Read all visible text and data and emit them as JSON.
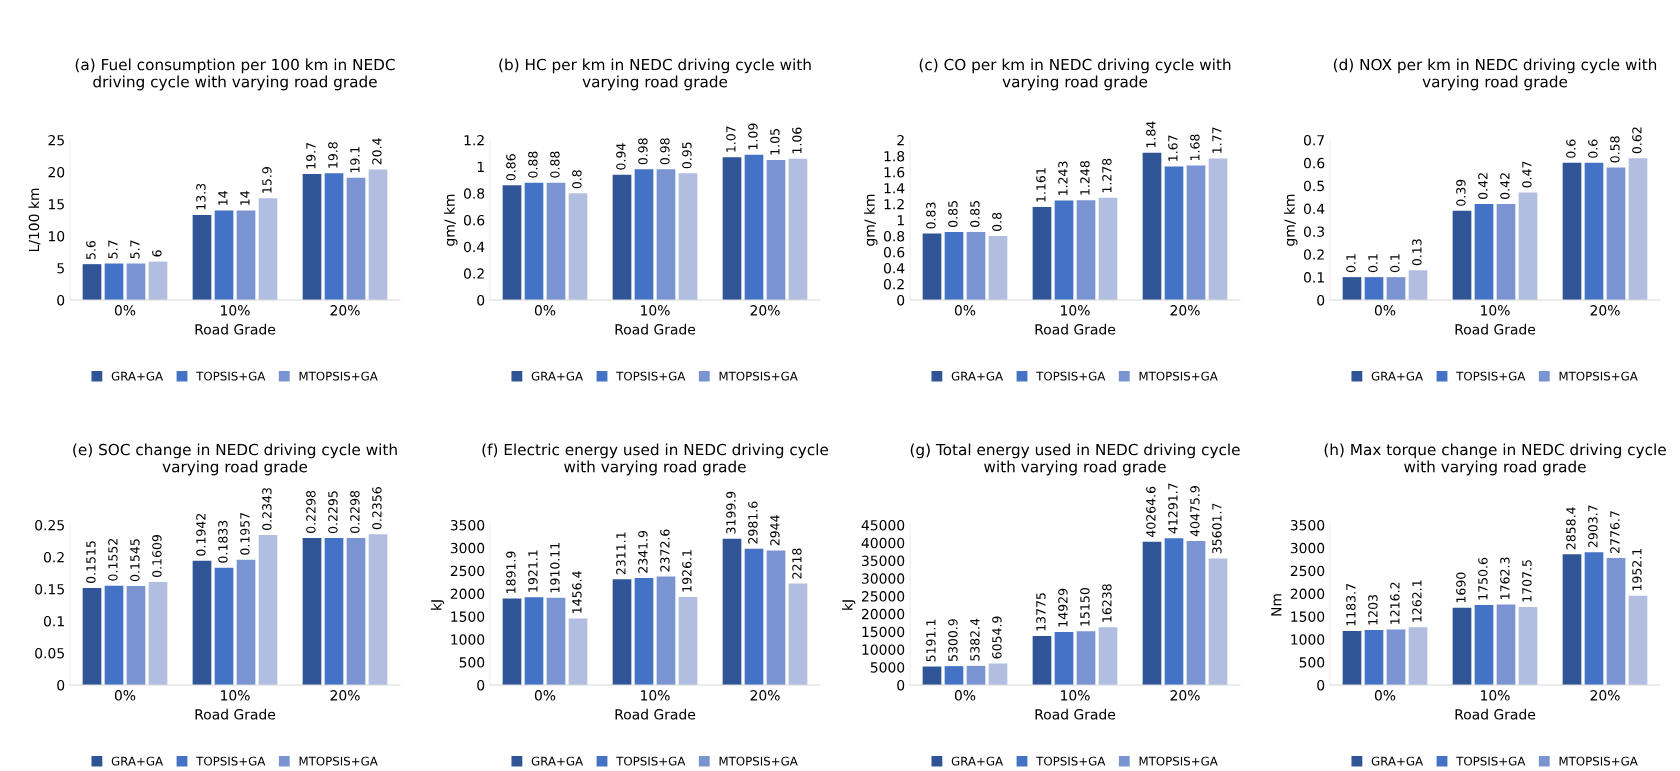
{
  "chart_data": [
    {
      "type": "bar",
      "title": "(a) Fuel consumption per 100 km in NEDC driving cycle with varying road grade",
      "xlabel": "Road Grade",
      "ylabel": "L/100 km",
      "categories": [
        "0%",
        "10%",
        "20%"
      ],
      "ylim": [
        0,
        25
      ],
      "yticks": [
        0,
        5,
        10,
        15,
        20,
        25
      ],
      "data_labels": true,
      "legend": "bottom",
      "grid": false,
      "series": [
        {
          "name": "GRA+GA",
          "color": "#2f5597",
          "values": [
            5.6,
            13.3,
            19.7
          ]
        },
        {
          "name": "TOPSIS+GA",
          "color": "#4472c4",
          "values": [
            5.7,
            14,
            19.8
          ]
        },
        {
          "name": "MTOPSIS+GA",
          "color": "#7a93d1",
          "values": [
            5.7,
            14,
            19.1
          ]
        },
        {
          "color": "#b1bee0",
          "values": [
            6,
            15.9,
            20.4
          ]
        }
      ]
    },
    {
      "type": "bar",
      "title": "(b) HC per km in NEDC driving cycle with varying road grade",
      "xlabel": "Road Grade",
      "ylabel": "gm/ km",
      "categories": [
        "0%",
        "10%",
        "20%"
      ],
      "ylim": [
        0,
        1.2
      ],
      "yticks": [
        0,
        0.2,
        0.4,
        0.6,
        0.8,
        1,
        1.2
      ],
      "data_labels": true,
      "legend": "bottom",
      "grid": false,
      "series": [
        {
          "name": "GRA+GA",
          "color": "#2f5597",
          "values": [
            0.86,
            0.94,
            1.07
          ]
        },
        {
          "name": "TOPSIS+GA",
          "color": "#4472c4",
          "values": [
            0.88,
            0.98,
            1.09
          ]
        },
        {
          "name": "MTOPSIS+GA",
          "color": "#7a93d1",
          "values": [
            0.88,
            0.98,
            1.05
          ]
        },
        {
          "color": "#b1bee0",
          "values": [
            0.8,
            0.95,
            1.06
          ]
        }
      ]
    },
    {
      "type": "bar",
      "title": "(c) CO per km in NEDC driving cycle with varying road grade",
      "xlabel": "Road Grade",
      "ylabel": "gm/ km",
      "categories": [
        "0%",
        "10%",
        "20%"
      ],
      "ylim": [
        0,
        2
      ],
      "yticks": [
        0,
        0.2,
        0.4,
        0.6,
        0.8,
        1,
        1.2,
        1.4,
        1.6,
        1.8,
        2
      ],
      "data_labels": true,
      "legend": "bottom",
      "grid": false,
      "series": [
        {
          "name": "GRA+GA",
          "color": "#2f5597",
          "values": [
            0.83,
            1.161,
            1.84
          ]
        },
        {
          "name": "TOPSIS+GA",
          "color": "#4472c4",
          "values": [
            0.85,
            1.243,
            1.67
          ]
        },
        {
          "name": "MTOPSIS+GA",
          "color": "#7a93d1",
          "values": [
            0.85,
            1.248,
            1.68
          ]
        },
        {
          "color": "#b1bee0",
          "values": [
            0.8,
            1.278,
            1.77
          ]
        }
      ]
    },
    {
      "type": "bar",
      "title": "(d) NOX per km in NEDC driving cycle with varying road grade",
      "xlabel": "Road Grade",
      "ylabel": "gm/ km",
      "categories": [
        "0%",
        "10%",
        "20%"
      ],
      "ylim": [
        0,
        0.7
      ],
      "yticks": [
        0,
        0.1,
        0.2,
        0.3,
        0.4,
        0.5,
        0.6,
        0.7
      ],
      "data_labels": true,
      "legend": "bottom",
      "grid": false,
      "series": [
        {
          "name": "GRA+GA",
          "color": "#2f5597",
          "values": [
            0.1,
            0.39,
            0.6
          ]
        },
        {
          "name": "TOPSIS+GA",
          "color": "#4472c4",
          "values": [
            0.1,
            0.42,
            0.6
          ]
        },
        {
          "name": "MTOPSIS+GA",
          "color": "#7a93d1",
          "values": [
            0.1,
            0.42,
            0.58
          ]
        },
        {
          "color": "#b1bee0",
          "values": [
            0.13,
            0.47,
            0.62
          ]
        }
      ]
    },
    {
      "type": "bar",
      "title": "(e) SOC change in NEDC driving cycle with varying road grade",
      "xlabel": "Road Grade",
      "categories": [
        "0%",
        "10%",
        "20%"
      ],
      "ylim": [
        0,
        0.25
      ],
      "yticks": [
        0,
        0.05,
        0.1,
        0.15,
        0.2,
        0.25
      ],
      "data_labels": true,
      "legend": "bottom",
      "grid": false,
      "series": [
        {
          "name": "GRA+GA",
          "color": "#2f5597",
          "values": [
            0.1515,
            0.1942,
            0.2298
          ]
        },
        {
          "name": "TOPSIS+GA",
          "color": "#4472c4",
          "values": [
            0.1552,
            0.1833,
            0.2295
          ]
        },
        {
          "name": "MTOPSIS+GA",
          "color": "#7a93d1",
          "values": [
            0.1545,
            0.1957,
            0.2298
          ]
        },
        {
          "color": "#b1bee0",
          "values": [
            0.1609,
            0.2343,
            0.2356
          ]
        }
      ]
    },
    {
      "type": "bar",
      "title": "(f) Electric energy used in NEDC driving cycle with varying road grade",
      "xlabel": "Road Grade",
      "ylabel": "kJ",
      "categories": [
        "0%",
        "10%",
        "20%"
      ],
      "ylim": [
        0,
        3500
      ],
      "yticks": [
        0,
        500,
        1000,
        1500,
        2000,
        2500,
        3000,
        3500
      ],
      "data_labels": true,
      "legend": "bottom",
      "grid": false,
      "series": [
        {
          "name": "GRA+GA",
          "color": "#2f5597",
          "values": [
            1891.9,
            2311.1,
            3199.9
          ]
        },
        {
          "name": "TOPSIS+GA",
          "color": "#4472c4",
          "values": [
            1921.1,
            2341.9,
            2981.6
          ]
        },
        {
          "name": "MTOPSIS+GA",
          "color": "#7a93d1",
          "values": [
            1910.11,
            2372.6,
            2944
          ]
        },
        {
          "color": "#b1bee0",
          "values": [
            1456.4,
            1926.1,
            2218
          ]
        }
      ]
    },
    {
      "type": "bar",
      "title": "(g) Total energy used in NEDC driving cycle with varying road grade",
      "xlabel": "Road Grade",
      "ylabel": "kJ",
      "categories": [
        "0%",
        "10%",
        "20%"
      ],
      "ylim": [
        0,
        45000
      ],
      "yticks": [
        0,
        5000,
        10000,
        15000,
        20000,
        25000,
        30000,
        35000,
        40000,
        45000
      ],
      "data_labels": true,
      "legend": "bottom",
      "grid": false,
      "series": [
        {
          "name": "GRA+GA",
          "color": "#2f5597",
          "values": [
            5191.1,
            13775,
            40264.6
          ]
        },
        {
          "name": "TOPSIS+GA",
          "color": "#4472c4",
          "values": [
            5300.9,
            14929,
            41291.7
          ]
        },
        {
          "name": "MTOPSIS+GA",
          "color": "#7a93d1",
          "values": [
            5382.4,
            15150,
            40475.9
          ]
        },
        {
          "color": "#b1bee0",
          "values": [
            6054.9,
            16238,
            35601.7
          ]
        }
      ]
    },
    {
      "type": "bar",
      "title": "(h) Max torque change in NEDC driving cycle with varying road grade",
      "xlabel": "Road Grade",
      "ylabel": "Nm",
      "categories": [
        "0%",
        "10%",
        "20%"
      ],
      "ylim": [
        0,
        3500
      ],
      "yticks": [
        0,
        500,
        1000,
        1500,
        2000,
        2500,
        3000,
        3500
      ],
      "data_labels": true,
      "legend": "bottom",
      "grid": false,
      "series": [
        {
          "name": "GRA+GA",
          "color": "#2f5597",
          "values": [
            1183.7,
            1690,
            2858.4
          ]
        },
        {
          "name": "TOPSIS+GA",
          "color": "#4472c4",
          "values": [
            1203,
            1750.6,
            2903.7
          ]
        },
        {
          "name": "MTOPSIS+GA",
          "color": "#7a93d1",
          "values": [
            1216.2,
            1762.3,
            2776.7
          ]
        },
        {
          "color": "#b1bee0",
          "values": [
            1262.1,
            1707.5,
            1952.1
          ]
        }
      ]
    }
  ]
}
